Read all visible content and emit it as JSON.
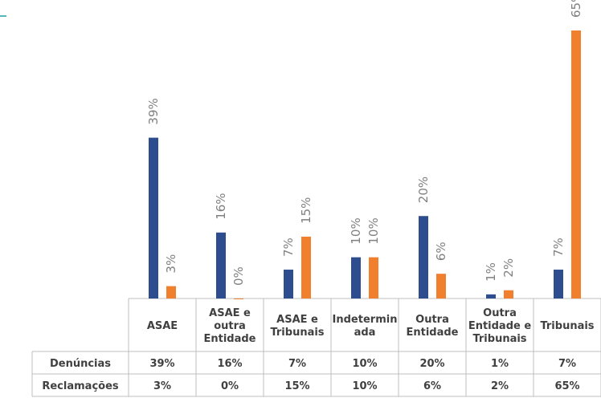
{
  "chart_data": {
    "type": "bar",
    "title": "",
    "categories": [
      [
        "ASAE"
      ],
      [
        "ASAE e",
        "outra",
        "Entidade"
      ],
      [
        "ASAE e",
        "Tribunais"
      ],
      [
        "Indetermin",
        "ada"
      ],
      [
        "Outra",
        "Entidade"
      ],
      [
        "Outra",
        "Entidade e",
        "Tribunais"
      ],
      [
        "Tribunais"
      ]
    ],
    "series": [
      {
        "name": "Denúncias",
        "color": "#2e4d8f",
        "values": [
          39,
          16,
          7,
          10,
          20,
          1,
          7
        ],
        "labels": [
          "39%",
          "16%",
          "7%",
          "10%",
          "20%",
          "1%",
          "7%"
        ]
      },
      {
        "name": "Reclamações",
        "color": "#f07f2e",
        "values": [
          3,
          0,
          15,
          10,
          6,
          2,
          65
        ],
        "labels": [
          "3%",
          "0%",
          "15%",
          "10%",
          "6%",
          "2%",
          "65%"
        ]
      }
    ],
    "ylim": [
      0,
      65
    ],
    "grid": false,
    "legend": "data-table-below"
  }
}
